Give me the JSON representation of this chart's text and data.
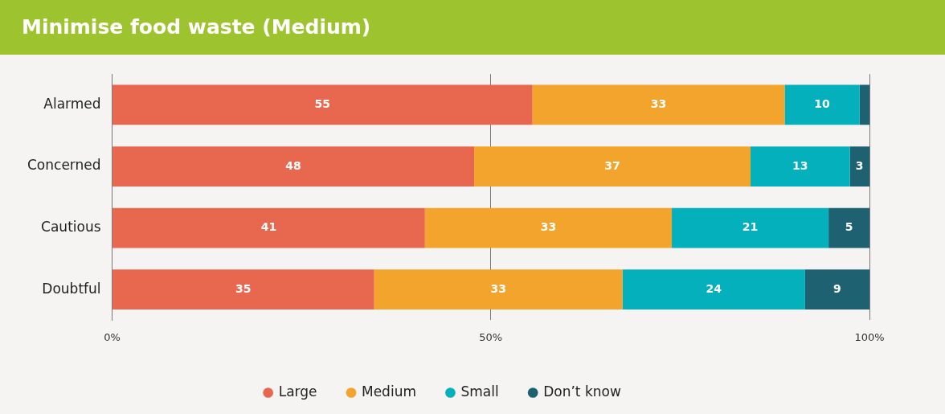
{
  "chart_data": {
    "type": "bar",
    "orientation": "horizontal",
    "stacked": true,
    "title": "Minimise food waste (Medium)",
    "categories": [
      "Alarmed",
      "Concerned",
      "Cautious",
      "Doubtful"
    ],
    "series": [
      {
        "name": "Large",
        "color": "#e8684f",
        "values": [
          55.5,
          47.8,
          41.3,
          34.6
        ],
        "value_labels": [
          "55",
          "48",
          "41",
          "35"
        ]
      },
      {
        "name": "Medium",
        "color": "#f2a42c",
        "values": [
          33.3,
          36.5,
          32.6,
          32.8
        ],
        "value_labels": [
          "33",
          "37",
          "33",
          "33"
        ]
      },
      {
        "name": "Small",
        "color": "#04b0bb",
        "values": [
          9.9,
          13.1,
          20.7,
          24.1
        ],
        "value_labels": [
          "10",
          "13",
          "21",
          "24"
        ]
      },
      {
        "name": "Don’t know",
        "color": "#1e6170",
        "values": [
          1.3,
          2.6,
          5.4,
          8.5
        ],
        "value_labels": [
          null,
          "3",
          "5",
          "9"
        ]
      }
    ],
    "xlim": [
      0,
      100
    ],
    "xticks": [
      {
        "value": 0,
        "label": "0%"
      },
      {
        "value": 50,
        "label": "50%"
      },
      {
        "value": 100,
        "label": "100%"
      }
    ],
    "grid": "x",
    "legend": "bottom",
    "marker": "circle"
  }
}
